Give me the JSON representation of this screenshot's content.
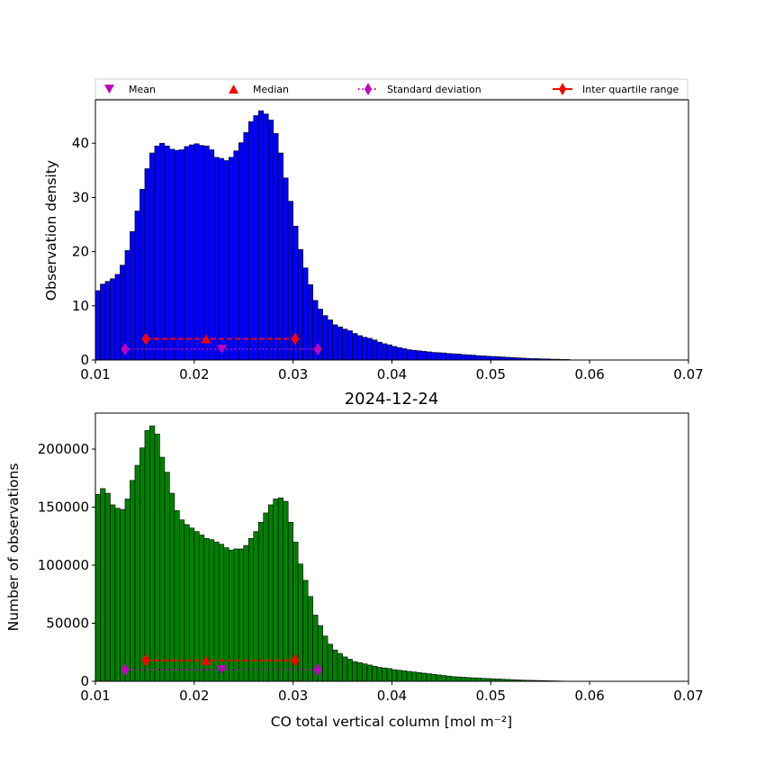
{
  "legend": {
    "items": [
      {
        "label": "Mean",
        "marker": "triangle-down",
        "color": "#bf00bf"
      },
      {
        "label": "Median",
        "marker": "triangle-up",
        "color": "#ff0000"
      },
      {
        "label": "Standard deviation",
        "marker": "diamond",
        "color": "#bf00bf",
        "line": "dotted"
      },
      {
        "label": "Inter quartile range",
        "marker": "diamond",
        "color": "#ff0000",
        "line": "solid"
      }
    ]
  },
  "chart_data": [
    {
      "type": "bar",
      "title": "",
      "xlabel": "",
      "ylabel": "Observation density",
      "xlim": [
        0.01,
        0.07
      ],
      "ylim": [
        0,
        48
      ],
      "xticks": [
        "0.01",
        "0.02",
        "0.03",
        "0.04",
        "0.05",
        "0.06",
        "0.07"
      ],
      "xtick_values": [
        0.01,
        0.02,
        0.03,
        0.04,
        0.05,
        0.06,
        0.07
      ],
      "yticks": [
        "0",
        "10",
        "20",
        "30",
        "40"
      ],
      "ytick_values": [
        0,
        10,
        20,
        30,
        40
      ],
      "bar_color": "#0000ff",
      "bin_start": 0.01,
      "bin_width": 0.0005,
      "values": [
        12.8,
        14.0,
        14.5,
        15.0,
        15.8,
        17.5,
        20.2,
        23.7,
        27.5,
        31.5,
        35.3,
        38.2,
        39.5,
        40.0,
        39.5,
        38.9,
        38.7,
        38.8,
        39.4,
        39.7,
        39.9,
        39.6,
        39.5,
        38.8,
        37.4,
        37.2,
        36.8,
        37.4,
        38.6,
        40.1,
        42.0,
        44.0,
        45.1,
        46.0,
        45.4,
        44.3,
        41.8,
        38.2,
        33.6,
        29.3,
        24.7,
        20.4,
        17.0,
        13.9,
        11.0,
        9.4,
        8.2,
        7.4,
        6.5,
        6.1,
        5.7,
        5.4,
        4.9,
        4.5,
        4.2,
        4.0,
        3.7,
        3.3,
        3.0,
        2.8,
        2.5,
        2.3,
        2.1,
        1.9,
        1.8,
        1.7,
        1.6,
        1.5,
        1.4,
        1.35,
        1.3,
        1.2,
        1.15,
        1.1,
        1.0,
        0.95,
        0.9,
        0.8,
        0.75,
        0.7,
        0.65,
        0.6,
        0.55,
        0.5,
        0.45,
        0.4,
        0.35,
        0.3,
        0.25,
        0.25,
        0.2,
        0.2,
        0.15,
        0.15,
        0.1,
        0.1
      ],
      "stats": {
        "mean": 0.0228,
        "median": 0.0212,
        "std_range": [
          0.013,
          0.0325
        ],
        "iqr_range": [
          0.0151,
          0.0302
        ],
        "std_y": 2.0,
        "iqr_y": 3.9
      }
    },
    {
      "type": "bar",
      "title": "2024-12-24",
      "xlabel": "CO total vertical column [mol m⁻²]",
      "ylabel": "Number of observations",
      "xlim": [
        0.01,
        0.07
      ],
      "ylim": [
        0,
        231000
      ],
      "xticks": [
        "0.01",
        "0.02",
        "0.03",
        "0.04",
        "0.05",
        "0.06",
        "0.07"
      ],
      "xtick_values": [
        0.01,
        0.02,
        0.03,
        0.04,
        0.05,
        0.06,
        0.07
      ],
      "yticks": [
        "0",
        "50000",
        "100000",
        "150000",
        "200000"
      ],
      "ytick_values": [
        0,
        50000,
        100000,
        150000,
        200000
      ],
      "bar_color": "#008000",
      "bin_start": 0.01,
      "bin_width": 0.0005,
      "values": [
        161000,
        166000,
        162000,
        152000,
        149000,
        148000,
        157000,
        173000,
        186000,
        201000,
        216000,
        220000,
        213000,
        193000,
        180000,
        162000,
        147000,
        139000,
        135000,
        132000,
        129000,
        126000,
        123000,
        122000,
        120000,
        118000,
        115000,
        113000,
        114000,
        114000,
        117000,
        123000,
        129000,
        137000,
        145000,
        152000,
        157000,
        158000,
        155000,
        137000,
        120000,
        101000,
        87000,
        73000,
        57000,
        48000,
        39000,
        32000,
        27000,
        24000,
        21000,
        19000,
        17000,
        16000,
        15000,
        14000,
        13000,
        12000,
        11500,
        11000,
        10000,
        9500,
        9000,
        8500,
        8000,
        7500,
        7000,
        6500,
        6000,
        5500,
        5000,
        4500,
        4000,
        3800,
        3500,
        3200,
        3000,
        2800,
        2600,
        2400,
        2200,
        2000,
        1800,
        1600,
        1400,
        1200,
        1000,
        900,
        800,
        700,
        600,
        500,
        400,
        300,
        200,
        150
      ],
      "stats": {
        "mean": 0.0228,
        "median": 0.0212,
        "std_range": [
          0.013,
          0.0325
        ],
        "iqr_range": [
          0.0151,
          0.0302
        ],
        "std_y": 10000,
        "iqr_y": 18000
      }
    }
  ]
}
